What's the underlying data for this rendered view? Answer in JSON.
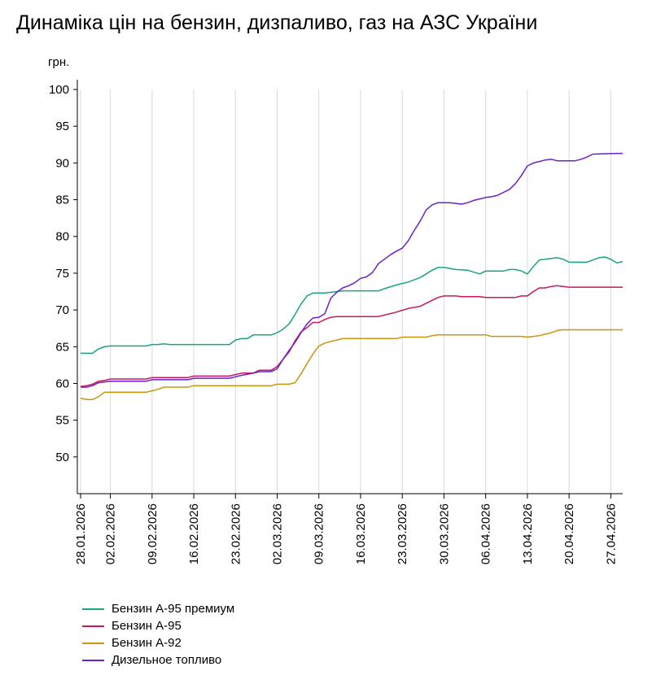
{
  "chart_data": {
    "type": "line",
    "title": "Динаміка цін на бензин, дизпаливо, газ на АЗС України",
    "ylabel": "грн.",
    "xlabel": "",
    "ylim": [
      45,
      100
    ],
    "y_ticks": [
      50,
      55,
      60,
      65,
      70,
      75,
      80,
      85,
      90,
      95,
      100
    ],
    "x_range": [
      "2026-01-28",
      "2026-04-29"
    ],
    "x_tick_labels": [
      "28.01.2026",
      "02.02.2026",
      "09.02.2026",
      "16.02.2026",
      "23.02.2026",
      "02.03.2026",
      "09.03.2026",
      "16.03.2026",
      "23.03.2026",
      "30.03.2026",
      "06.04.2026",
      "13.04.2026",
      "20.04.2026",
      "27.04.2026"
    ],
    "grid": "vertical",
    "legend_position": "bottom-left",
    "series": [
      {
        "name": "Бензин А-95 премиум",
        "color": "#1aa384",
        "points": [
          [
            "2026-01-28",
            64.1
          ],
          [
            "2026-01-30",
            64.1
          ],
          [
            "2026-01-31",
            64.7
          ],
          [
            "2026-02-01",
            65.0
          ],
          [
            "2026-02-02",
            65.1
          ],
          [
            "2026-02-08",
            65.1
          ],
          [
            "2026-02-09",
            65.3
          ],
          [
            "2026-02-10",
            65.3
          ],
          [
            "2026-02-11",
            65.4
          ],
          [
            "2026-02-12",
            65.3
          ],
          [
            "2026-02-22",
            65.3
          ],
          [
            "2026-02-23",
            65.9
          ],
          [
            "2026-02-24",
            66.1
          ],
          [
            "2026-02-25",
            66.1
          ],
          [
            "2026-02-26",
            66.6
          ],
          [
            "2026-03-01",
            66.6
          ],
          [
            "2026-03-02",
            66.9
          ],
          [
            "2026-03-03",
            67.4
          ],
          [
            "2026-03-04",
            68.1
          ],
          [
            "2026-03-05",
            69.4
          ],
          [
            "2026-03-06",
            70.8
          ],
          [
            "2026-03-07",
            71.9
          ],
          [
            "2026-03-08",
            72.3
          ],
          [
            "2026-03-10",
            72.3
          ],
          [
            "2026-03-12",
            72.5
          ],
          [
            "2026-03-13",
            72.6
          ],
          [
            "2026-03-19",
            72.6
          ],
          [
            "2026-03-20",
            72.9
          ],
          [
            "2026-03-22",
            73.4
          ],
          [
            "2026-03-24",
            73.8
          ],
          [
            "2026-03-26",
            74.4
          ],
          [
            "2026-03-28",
            75.4
          ],
          [
            "2026-03-29",
            75.8
          ],
          [
            "2026-03-30",
            75.8
          ],
          [
            "2026-04-01",
            75.5
          ],
          [
            "2026-04-03",
            75.4
          ],
          [
            "2026-04-05",
            74.9
          ],
          [
            "2026-04-06",
            75.3
          ],
          [
            "2026-04-09",
            75.3
          ],
          [
            "2026-04-10",
            75.5
          ],
          [
            "2026-04-11",
            75.5
          ],
          [
            "2026-04-12",
            75.3
          ],
          [
            "2026-04-13",
            74.9
          ],
          [
            "2026-04-14",
            75.9
          ],
          [
            "2026-04-15",
            76.8
          ],
          [
            "2026-04-16",
            76.9
          ],
          [
            "2026-04-17",
            77.0
          ],
          [
            "2026-04-18",
            77.1
          ],
          [
            "2026-04-19",
            76.9
          ],
          [
            "2026-04-20",
            76.5
          ],
          [
            "2026-04-23",
            76.5
          ],
          [
            "2026-04-24",
            76.8
          ],
          [
            "2026-04-25",
            77.1
          ],
          [
            "2026-04-26",
            77.2
          ],
          [
            "2026-04-27",
            76.9
          ],
          [
            "2026-04-28",
            76.4
          ],
          [
            "2026-04-29",
            76.6
          ]
        ]
      },
      {
        "name": "Бензин А-95",
        "color": "#c8175e",
        "points": [
          [
            "2026-01-28",
            59.6
          ],
          [
            "2026-01-29",
            59.7
          ],
          [
            "2026-01-30",
            59.9
          ],
          [
            "2026-01-31",
            60.3
          ],
          [
            "2026-02-01",
            60.4
          ],
          [
            "2026-02-02",
            60.6
          ],
          [
            "2026-02-08",
            60.6
          ],
          [
            "2026-02-09",
            60.8
          ],
          [
            "2026-02-15",
            60.8
          ],
          [
            "2026-02-16",
            61.0
          ],
          [
            "2026-02-22",
            61.0
          ],
          [
            "2026-02-23",
            61.2
          ],
          [
            "2026-02-24",
            61.4
          ],
          [
            "2026-02-26",
            61.4
          ],
          [
            "2026-02-27",
            61.8
          ],
          [
            "2026-03-01",
            61.8
          ],
          [
            "2026-03-02",
            62.3
          ],
          [
            "2026-03-03",
            63.3
          ],
          [
            "2026-03-04",
            64.3
          ],
          [
            "2026-03-05",
            65.8
          ],
          [
            "2026-03-06",
            67.0
          ],
          [
            "2026-03-07",
            67.6
          ],
          [
            "2026-03-08",
            68.3
          ],
          [
            "2026-03-09",
            68.3
          ],
          [
            "2026-03-10",
            68.7
          ],
          [
            "2026-03-11",
            69.0
          ],
          [
            "2026-03-12",
            69.1
          ],
          [
            "2026-03-19",
            69.1
          ],
          [
            "2026-03-20",
            69.3
          ],
          [
            "2026-03-22",
            69.7
          ],
          [
            "2026-03-24",
            70.2
          ],
          [
            "2026-03-26",
            70.5
          ],
          [
            "2026-03-28",
            71.3
          ],
          [
            "2026-03-29",
            71.7
          ],
          [
            "2026-03-30",
            71.9
          ],
          [
            "2026-04-01",
            71.9
          ],
          [
            "2026-04-02",
            71.8
          ],
          [
            "2026-04-05",
            71.8
          ],
          [
            "2026-04-06",
            71.7
          ],
          [
            "2026-04-11",
            71.7
          ],
          [
            "2026-04-12",
            71.9
          ],
          [
            "2026-04-13",
            71.9
          ],
          [
            "2026-04-14",
            72.5
          ],
          [
            "2026-04-15",
            73.0
          ],
          [
            "2026-04-16",
            73.0
          ],
          [
            "2026-04-17",
            73.2
          ],
          [
            "2026-04-18",
            73.3
          ],
          [
            "2026-04-19",
            73.2
          ],
          [
            "2026-04-20",
            73.1
          ],
          [
            "2026-04-29",
            73.1
          ]
        ]
      },
      {
        "name": "Бензин А-92",
        "color": "#c9960c",
        "points": [
          [
            "2026-01-28",
            58.0
          ],
          [
            "2026-01-29",
            57.8
          ],
          [
            "2026-01-30",
            57.8
          ],
          [
            "2026-01-31",
            58.2
          ],
          [
            "2026-02-01",
            58.8
          ],
          [
            "2026-02-08",
            58.8
          ],
          [
            "2026-02-09",
            59.0
          ],
          [
            "2026-02-10",
            59.2
          ],
          [
            "2026-02-11",
            59.5
          ],
          [
            "2026-02-15",
            59.5
          ],
          [
            "2026-02-16",
            59.7
          ],
          [
            "2026-02-29",
            59.7
          ],
          [
            "2026-03-01",
            59.7
          ],
          [
            "2026-03-02",
            59.9
          ],
          [
            "2026-03-04",
            59.9
          ],
          [
            "2026-03-05",
            60.1
          ],
          [
            "2026-03-06",
            61.3
          ],
          [
            "2026-03-07",
            62.7
          ],
          [
            "2026-03-08",
            64.0
          ],
          [
            "2026-03-09",
            65.1
          ],
          [
            "2026-03-10",
            65.5
          ],
          [
            "2026-03-11",
            65.7
          ],
          [
            "2026-03-12",
            65.9
          ],
          [
            "2026-03-13",
            66.1
          ],
          [
            "2026-03-22",
            66.1
          ],
          [
            "2026-03-23",
            66.3
          ],
          [
            "2026-03-27",
            66.3
          ],
          [
            "2026-03-28",
            66.5
          ],
          [
            "2026-03-29",
            66.6
          ],
          [
            "2026-04-06",
            66.6
          ],
          [
            "2026-04-07",
            66.4
          ],
          [
            "2026-04-12",
            66.4
          ],
          [
            "2026-04-13",
            66.3
          ],
          [
            "2026-04-14",
            66.4
          ],
          [
            "2026-04-15",
            66.5
          ],
          [
            "2026-04-17",
            66.9
          ],
          [
            "2026-04-18",
            67.2
          ],
          [
            "2026-04-19",
            67.3
          ],
          [
            "2026-04-29",
            67.3
          ]
        ]
      },
      {
        "name": "Дизельное топливо",
        "color": "#6a20c9",
        "points": [
          [
            "2026-01-28",
            59.5
          ],
          [
            "2026-01-29",
            59.5
          ],
          [
            "2026-01-30",
            59.7
          ],
          [
            "2026-01-31",
            60.1
          ],
          [
            "2026-02-01",
            60.2
          ],
          [
            "2026-02-02",
            60.3
          ],
          [
            "2026-02-08",
            60.3
          ],
          [
            "2026-02-09",
            60.5
          ],
          [
            "2026-02-15",
            60.5
          ],
          [
            "2026-02-16",
            60.7
          ],
          [
            "2026-02-22",
            60.7
          ],
          [
            "2026-02-23",
            60.9
          ],
          [
            "2026-02-24",
            61.1
          ],
          [
            "2026-02-26",
            61.4
          ],
          [
            "2026-02-27",
            61.6
          ],
          [
            "2026-03-01",
            61.6
          ],
          [
            "2026-03-02",
            62.0
          ],
          [
            "2026-03-03",
            63.3
          ],
          [
            "2026-03-04",
            64.5
          ],
          [
            "2026-03-05",
            65.6
          ],
          [
            "2026-03-06",
            66.9
          ],
          [
            "2026-03-07",
            68.1
          ],
          [
            "2026-03-08",
            68.9
          ],
          [
            "2026-03-09",
            69.0
          ],
          [
            "2026-03-10",
            69.5
          ],
          [
            "2026-03-11",
            71.6
          ],
          [
            "2026-03-12",
            72.4
          ],
          [
            "2026-03-13",
            73.0
          ],
          [
            "2026-03-14",
            73.3
          ],
          [
            "2026-03-15",
            73.7
          ],
          [
            "2026-03-16",
            74.3
          ],
          [
            "2026-03-17",
            74.5
          ],
          [
            "2026-03-18",
            75.1
          ],
          [
            "2026-03-19",
            76.3
          ],
          [
            "2026-03-20",
            76.9
          ],
          [
            "2026-03-21",
            77.5
          ],
          [
            "2026-03-22",
            78.0
          ],
          [
            "2026-03-23",
            78.4
          ],
          [
            "2026-03-24",
            79.4
          ],
          [
            "2026-03-25",
            80.8
          ],
          [
            "2026-03-26",
            82.1
          ],
          [
            "2026-03-27",
            83.6
          ],
          [
            "2026-03-28",
            84.3
          ],
          [
            "2026-03-29",
            84.6
          ],
          [
            "2026-03-31",
            84.6
          ],
          [
            "2026-04-01",
            84.5
          ],
          [
            "2026-04-02",
            84.4
          ],
          [
            "2026-04-03",
            84.6
          ],
          [
            "2026-04-04",
            84.9
          ],
          [
            "2026-04-05",
            85.1
          ],
          [
            "2026-04-06",
            85.3
          ],
          [
            "2026-04-07",
            85.4
          ],
          [
            "2026-04-08",
            85.6
          ],
          [
            "2026-04-09",
            86.0
          ],
          [
            "2026-04-10",
            86.4
          ],
          [
            "2026-04-11",
            87.2
          ],
          [
            "2026-04-12",
            88.3
          ],
          [
            "2026-04-13",
            89.6
          ],
          [
            "2026-04-14",
            90.0
          ],
          [
            "2026-04-15",
            90.2
          ],
          [
            "2026-04-16",
            90.4
          ],
          [
            "2026-04-17",
            90.5
          ],
          [
            "2026-04-18",
            90.3
          ],
          [
            "2026-04-21",
            90.3
          ],
          [
            "2026-04-22",
            90.5
          ],
          [
            "2026-04-23",
            90.8
          ],
          [
            "2026-04-24",
            91.2
          ],
          [
            "2026-04-28",
            91.3
          ],
          [
            "2026-04-29",
            91.3
          ]
        ]
      }
    ]
  }
}
